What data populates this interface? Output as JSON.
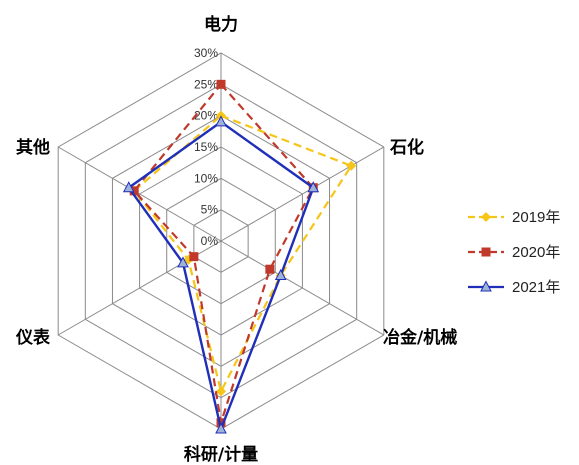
{
  "chart_data": {
    "type": "radar",
    "axes": [
      "电力",
      "石化",
      "冶金/机械",
      "科研/计量",
      "仪表",
      "其他"
    ],
    "rmax": 30,
    "ticks": [
      "0%",
      "5%",
      "10%",
      "15%",
      "20%",
      "25%",
      "30%"
    ],
    "tick_values": [
      0,
      5,
      10,
      15,
      20,
      25,
      30
    ],
    "legend_position": "right",
    "series": [
      {
        "name": "2019年",
        "values": [
          20,
          24,
          11,
          24,
          6,
          16
        ],
        "color": "#F5C518",
        "dash": "dashed",
        "marker": "diamond"
      },
      {
        "name": "2020年",
        "values": [
          25,
          17,
          9,
          29,
          5,
          16
        ],
        "color": "#C0392B",
        "dash": "dashed",
        "marker": "square"
      },
      {
        "name": "2021年",
        "values": [
          19,
          17,
          11,
          30,
          7,
          17
        ],
        "color": "#1F2FB8",
        "dash": "solid",
        "marker": "triangle"
      }
    ]
  }
}
